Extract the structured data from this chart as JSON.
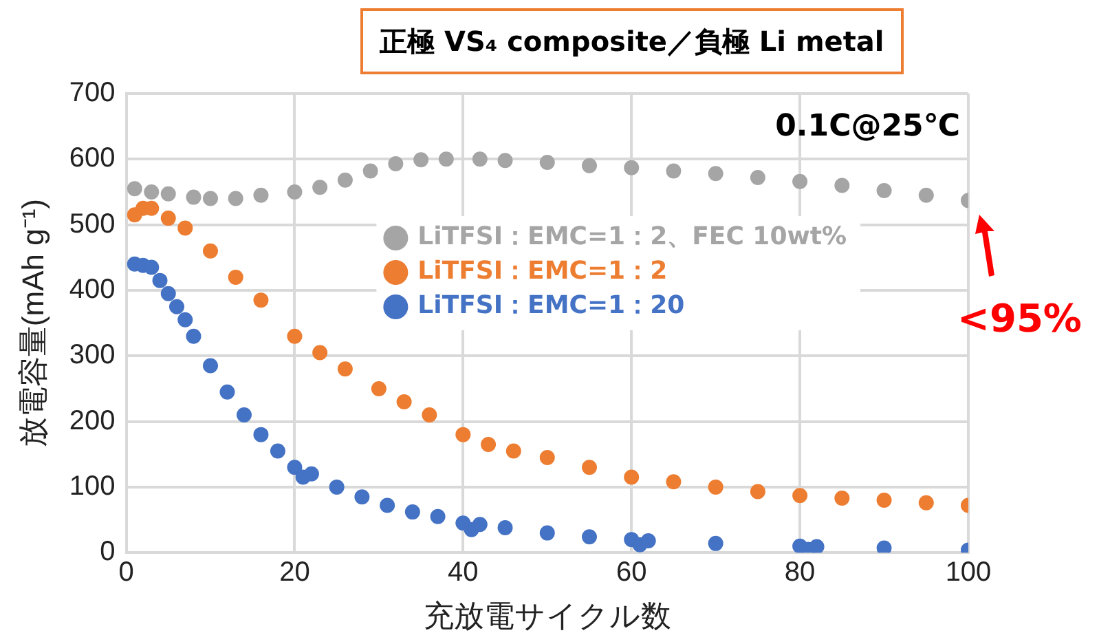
{
  "chart_data": {
    "type": "scatter",
    "title": "正極 VS₄ composite／負極 Li metal",
    "xlabel": "充放電サイクル数",
    "ylabel": "放電容量(mAh g⁻¹)",
    "xlim": [
      0,
      100
    ],
    "xticks": [
      0,
      20,
      40,
      60,
      80,
      100
    ],
    "ylim": [
      0,
      700
    ],
    "yticks": [
      0,
      100,
      200,
      300,
      400,
      500,
      600,
      700
    ],
    "grid": true,
    "legend": "right",
    "marker": "circle",
    "annotations": [
      "0.1C@25℃",
      {
        "text": "<95%",
        "x": 100,
        "y": 537
      }
    ],
    "series": [
      {
        "name": "LiTFSI：EMC=1：2、FEC 10wt%",
        "color": "#a5a5a5",
        "x": [
          1,
          3,
          5,
          8,
          10,
          13,
          16,
          20,
          23,
          26,
          29,
          32,
          35,
          38,
          42,
          45,
          50,
          55,
          60,
          65,
          70,
          75,
          80,
          85,
          90,
          95,
          100
        ],
        "values": [
          555,
          550,
          547,
          542,
          540,
          540,
          545,
          550,
          557,
          568,
          582,
          593,
          599,
          600,
          600,
          598,
          595,
          590,
          587,
          582,
          578,
          572,
          566,
          560,
          552,
          545,
          537
        ]
      },
      {
        "name": "LiTFSI：EMC=1：2",
        "color": "#ed7d31",
        "x": [
          1,
          2,
          3,
          5,
          7,
          10,
          13,
          16,
          20,
          23,
          26,
          30,
          33,
          36,
          40,
          43,
          46,
          50,
          55,
          60,
          65,
          70,
          75,
          80,
          85,
          90,
          95,
          100
        ],
        "values": [
          515,
          525,
          525,
          510,
          495,
          460,
          420,
          385,
          330,
          305,
          280,
          250,
          230,
          210,
          180,
          165,
          155,
          145,
          130,
          115,
          108,
          100,
          93,
          87,
          83,
          80,
          76,
          72
        ]
      },
      {
        "name": "LiTFSI：EMC=1：20",
        "color": "#4472c4",
        "x": [
          1,
          2,
          3,
          4,
          5,
          6,
          7,
          8,
          10,
          12,
          14,
          16,
          18,
          20,
          21,
          22,
          25,
          28,
          31,
          34,
          37,
          40,
          41,
          42,
          45,
          50,
          55,
          60,
          61,
          62,
          70,
          80,
          81,
          82,
          90,
          100
        ],
        "values": [
          440,
          438,
          435,
          415,
          395,
          375,
          355,
          330,
          285,
          245,
          210,
          180,
          155,
          130,
          115,
          120,
          100,
          85,
          72,
          62,
          55,
          45,
          35,
          43,
          38,
          30,
          24,
          20,
          12,
          18,
          14,
          10,
          5,
          9,
          7,
          4
        ]
      }
    ]
  }
}
